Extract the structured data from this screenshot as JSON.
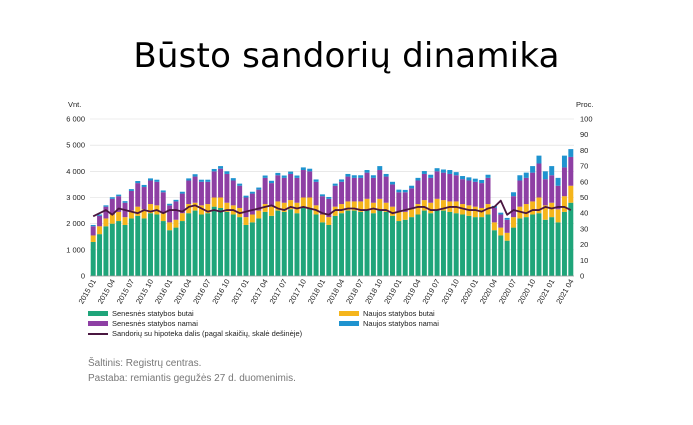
{
  "title": "Būsto sandorių dinamika",
  "source_text": "Šaltinis: Registrų centras.",
  "note_text": "Pastaba: remiantis gegužės 27 d. duomenimis.",
  "legend": {
    "senesnes_butai": "Senesnės statybos butai",
    "naujos_butai": "Naujos statybos butai",
    "senesnes_namai": "Senesnės statybos namai",
    "naujos_namai": "Naujos statybos namai",
    "hipoteka": "Sandorių su hipoteka dalis (pagal skaičių, skalė dešinėje)"
  },
  "colors": {
    "senesnes_butai": "#1fa57a",
    "naujos_butai": "#f5b51c",
    "senesnes_namai": "#8e3fa4",
    "naujos_namai": "#1f93cf",
    "hipoteka": "#4a1740"
  },
  "chart_data": {
    "type": "bar",
    "stacked": true,
    "left_axis_label": "Vnt.",
    "right_axis_label": "Proc.",
    "ylim": [
      0,
      6000
    ],
    "yticks": [
      "0",
      "1 000",
      "2 000",
      "3 000",
      "4 000",
      "5 000",
      "6 000"
    ],
    "y2lim": [
      0,
      100
    ],
    "y2ticks": [
      "0",
      "10",
      "20",
      "30",
      "40",
      "50",
      "60",
      "70",
      "80",
      "90",
      "100"
    ],
    "grid": true,
    "legend_position": "bottom",
    "xtick_labels": [
      "2015 01",
      "2015 04",
      "2015 07",
      "2015 10",
      "2016 01",
      "2016 04",
      "2016 07",
      "2016 10",
      "2017 01",
      "2017 04",
      "2017 07",
      "2017 10",
      "2018 01",
      "2018 04",
      "2018 07",
      "2018 10",
      "2019 01",
      "2019 04",
      "2019 07",
      "2019 10",
      "2020 01",
      "2020 04",
      "2020 07",
      "2020 10",
      "2021 01",
      "2021 04"
    ],
    "categories": [
      "2015 01",
      "2015 02",
      "2015 03",
      "2015 04",
      "2015 05",
      "2015 06",
      "2015 07",
      "2015 08",
      "2015 09",
      "2015 10",
      "2015 11",
      "2015 12",
      "2016 01",
      "2016 02",
      "2016 03",
      "2016 04",
      "2016 05",
      "2016 06",
      "2016 07",
      "2016 08",
      "2016 09",
      "2016 10",
      "2016 11",
      "2016 12",
      "2017 01",
      "2017 02",
      "2017 03",
      "2017 04",
      "2017 05",
      "2017 06",
      "2017 07",
      "2017 08",
      "2017 09",
      "2017 10",
      "2017 11",
      "2017 12",
      "2018 01",
      "2018 02",
      "2018 03",
      "2018 04",
      "2018 05",
      "2018 06",
      "2018 07",
      "2018 08",
      "2018 09",
      "2018 10",
      "2018 11",
      "2018 12",
      "2019 01",
      "2019 02",
      "2019 03",
      "2019 04",
      "2019 05",
      "2019 06",
      "2019 07",
      "2019 08",
      "2019 09",
      "2019 10",
      "2019 11",
      "2019 12",
      "2020 01",
      "2020 02",
      "2020 03",
      "2020 04",
      "2020 05",
      "2020 06",
      "2020 07",
      "2020 08",
      "2020 09",
      "2020 10",
      "2020 11",
      "2020 12",
      "2021 01",
      "2021 02",
      "2021 03",
      "2021 04"
    ],
    "series": [
      {
        "name": "Senesnės statybos butai",
        "key": "senesnes_butai",
        "values": [
          1300,
          1600,
          1900,
          2000,
          2100,
          1950,
          2200,
          2300,
          2200,
          2400,
          2350,
          2100,
          1750,
          1850,
          2100,
          2400,
          2500,
          2350,
          2400,
          2650,
          2600,
          2450,
          2350,
          2250,
          1950,
          2050,
          2200,
          2450,
          2300,
          2500,
          2450,
          2550,
          2400,
          2650,
          2600,
          2350,
          2050,
          1950,
          2300,
          2400,
          2500,
          2500,
          2450,
          2550,
          2400,
          2550,
          2450,
          2300,
          2100,
          2150,
          2250,
          2350,
          2500,
          2400,
          2550,
          2500,
          2450,
          2400,
          2350,
          2300,
          2250,
          2250,
          2350,
          1750,
          1550,
          1350,
          1850,
          2200,
          2250,
          2350,
          2400,
          2150,
          2250,
          2050,
          2450,
          2800
        ]
      },
      {
        "name": "Naujos statybos butai",
        "key": "naujos_butai",
        "values": [
          250,
          300,
          300,
          350,
          350,
          300,
          300,
          350,
          350,
          350,
          350,
          300,
          300,
          300,
          300,
          350,
          300,
          350,
          350,
          350,
          400,
          350,
          350,
          350,
          300,
          300,
          300,
          300,
          350,
          350,
          350,
          350,
          400,
          350,
          400,
          350,
          300,
          300,
          350,
          350,
          350,
          350,
          400,
          400,
          400,
          400,
          350,
          350,
          350,
          300,
          300,
          400,
          400,
          400,
          400,
          400,
          400,
          450,
          400,
          400,
          400,
          350,
          400,
          300,
          300,
          300,
          400,
          450,
          500,
          500,
          600,
          550,
          550,
          500,
          600,
          650
        ]
      },
      {
        "name": "Senesnės statybos namai",
        "key": "senesnes_namai",
        "values": [
          350,
          400,
          450,
          600,
          600,
          550,
          750,
          900,
          850,
          900,
          900,
          800,
          650,
          700,
          750,
          900,
          1000,
          900,
          850,
          1000,
          1100,
          1100,
          950,
          850,
          750,
          800,
          800,
          1000,
          900,
          1000,
          950,
          1000,
          950,
          1050,
          1000,
          900,
          700,
          700,
          800,
          850,
          950,
          900,
          900,
          1000,
          950,
          1100,
          1000,
          850,
          750,
          750,
          800,
          900,
          1000,
          950,
          1050,
          1050,
          1050,
          1000,
          950,
          950,
          950,
          950,
          1000,
          550,
          500,
          500,
          800,
          1000,
          1000,
          1100,
          1300,
          1000,
          1050,
          900,
          1100,
          1100
        ]
      },
      {
        "name": "Naujos statybos namai",
        "key": "naujos_namai",
        "values": [
          50,
          50,
          50,
          60,
          60,
          60,
          70,
          80,
          80,
          80,
          80,
          70,
          60,
          60,
          70,
          80,
          90,
          80,
          80,
          90,
          100,
          100,
          90,
          80,
          70,
          70,
          80,
          90,
          90,
          90,
          90,
          90,
          90,
          100,
          100,
          90,
          70,
          70,
          80,
          90,
          100,
          100,
          100,
          100,
          100,
          150,
          100,
          100,
          100,
          90,
          100,
          100,
          110,
          120,
          120,
          120,
          150,
          120,
          120,
          120,
          120,
          120,
          120,
          80,
          70,
          70,
          150,
          200,
          200,
          250,
          300,
          300,
          350,
          300,
          450,
          300
        ]
      },
      {
        "name": "Sandorių su hipoteka dalis (pagal skaičių, skalė dešinėje)",
        "key": "hipoteka",
        "axis": "right",
        "type": "line",
        "values": [
          38,
          40,
          42,
          39,
          43,
          42,
          41,
          40,
          42,
          41,
          42,
          40,
          42,
          42,
          41,
          44,
          45,
          43,
          41,
          42,
          41,
          42,
          42,
          40,
          41,
          42,
          43,
          44,
          45,
          43,
          42,
          44,
          43,
          44,
          43,
          42,
          40,
          39,
          42,
          42,
          43,
          43,
          42,
          42,
          43,
          42,
          42,
          40,
          41,
          42,
          43,
          44,
          44,
          42,
          42,
          43,
          44,
          44,
          43,
          42,
          42,
          41,
          43,
          44,
          48,
          39,
          42,
          41,
          40,
          42,
          42,
          44,
          43,
          44,
          44,
          42
        ]
      }
    ]
  }
}
